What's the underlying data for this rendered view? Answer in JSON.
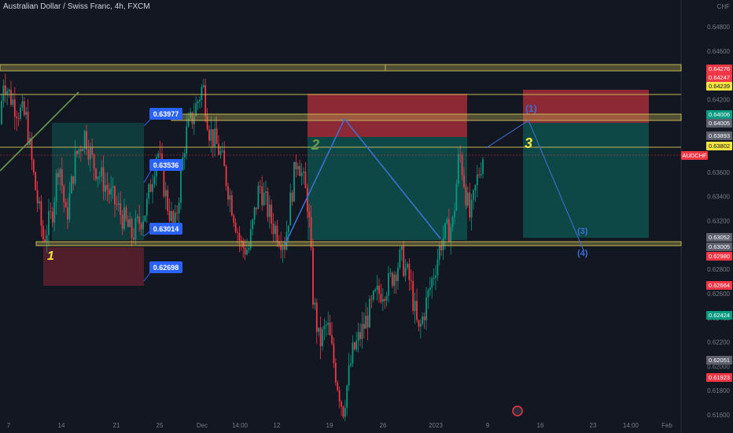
{
  "window": {
    "title": "Australian Dollar / Swiss Franc, 4h, FXCM",
    "currency": "CHF"
  },
  "chart_data": {
    "type": "candlestick",
    "symbol_label": "AUDCHF",
    "price_axis": {
      "ylim": [
        0.6155,
        0.6505
      ],
      "tick_labels": [
        "0.64800",
        "0.64600",
        "0.64400",
        "0.64200",
        "0.64000",
        "0.63800",
        "0.63600",
        "0.63400",
        "0.63200",
        "0.63000",
        "0.62800",
        "0.62600",
        "0.62400",
        "0.62200",
        "0.62000",
        "0.61800",
        "0.61600"
      ]
    },
    "time_axis": {
      "tick_labels": [
        "7",
        "14",
        "21",
        "25",
        "Dec",
        "14:00",
        "12",
        "19",
        "26",
        "2023",
        "9",
        "16",
        "23",
        "14:00",
        "Feb"
      ]
    },
    "price_tags": [
      {
        "label": "0.64276",
        "value": 0.64276,
        "color": "#f23645"
      },
      {
        "label": "0.64247",
        "value": 0.64247,
        "color": "#f23645"
      },
      {
        "label": "0.64239",
        "value": 0.64239,
        "color": "#f5e342"
      },
      {
        "label": "0.64006",
        "value": 0.64006,
        "color": "#089981"
      },
      {
        "label": "0.64005",
        "value": 0.64005,
        "color": "#5d606b"
      },
      {
        "label": "0.63893",
        "value": 0.63893,
        "color": "#5d606b"
      },
      {
        "label": "0.63802",
        "value": 0.63802,
        "color": "#f5e342"
      },
      {
        "label": "AUDCHF",
        "value": 0.63741,
        "color": "#f23645"
      },
      {
        "label": "0.63052",
        "value": 0.63052,
        "color": "#5d606b"
      },
      {
        "label": "0.63005",
        "value": 0.63005,
        "color": "#5d606b"
      },
      {
        "label": "0.62980",
        "value": 0.6298,
        "color": "#f23645"
      },
      {
        "label": "0.62664",
        "value": 0.62664,
        "color": "#f23645"
      },
      {
        "label": "0.62424",
        "value": 0.62424,
        "color": "#089981"
      },
      {
        "label": "0.62051",
        "value": 0.62051,
        "color": "#5d606b"
      },
      {
        "label": "0.61923",
        "value": 0.61923,
        "color": "#f23645"
      }
    ],
    "callouts": [
      "0.63977",
      "0.63536",
      "0.63014",
      "0.62698"
    ],
    "wave_labels": [
      {
        "text": "1",
        "color": "#f5e342"
      },
      {
        "text": "2",
        "color": "#6b9a4e"
      },
      {
        "text": "3",
        "color": "#f5e342"
      },
      {
        "text": "(1)",
        "color": "#3b6fd4"
      },
      {
        "text": "(3)",
        "color": "#3b6fd4"
      },
      {
        "text": "(4)",
        "color": "#3b6fd4"
      }
    ],
    "grid": false,
    "colors": {
      "up": "#089981",
      "down": "#f23645",
      "background": "#131722",
      "levels": "#c4b454"
    }
  }
}
